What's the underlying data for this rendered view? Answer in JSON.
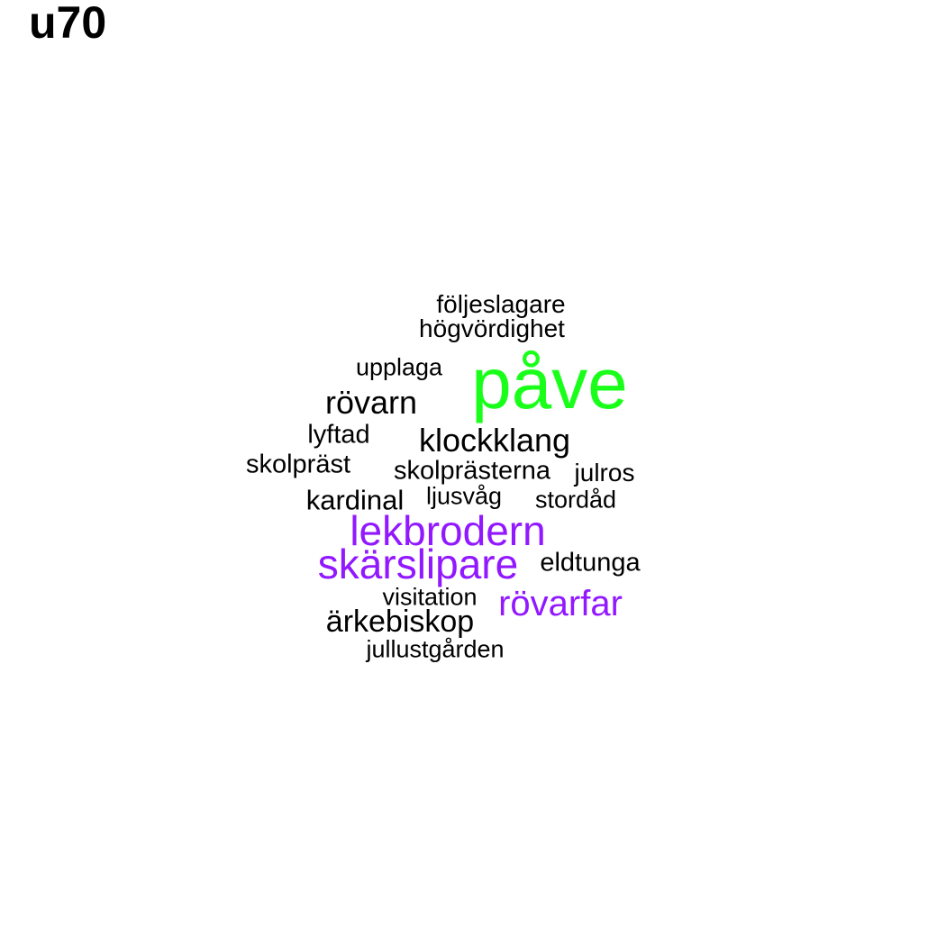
{
  "title": "u70",
  "colors": {
    "default": "#000000",
    "purple": "#9118ff",
    "green": "#1aff1a"
  },
  "words": [
    {
      "text": "påve",
      "color": "green"
    },
    {
      "text": "lekbrodern",
      "color": "purple"
    },
    {
      "text": "skärslipare",
      "color": "purple"
    },
    {
      "text": "rövarfar",
      "color": "purple"
    },
    {
      "text": "följeslagare",
      "color": "default"
    },
    {
      "text": "högvördighet",
      "color": "default"
    },
    {
      "text": "upplaga",
      "color": "default"
    },
    {
      "text": "rövarn",
      "color": "default"
    },
    {
      "text": "lyftad",
      "color": "default"
    },
    {
      "text": "klockklang",
      "color": "default"
    },
    {
      "text": "skolpräst",
      "color": "default"
    },
    {
      "text": "skolprästerna",
      "color": "default"
    },
    {
      "text": "julros",
      "color": "default"
    },
    {
      "text": "kardinal",
      "color": "default"
    },
    {
      "text": "ljusvåg",
      "color": "default"
    },
    {
      "text": "stordåd",
      "color": "default"
    },
    {
      "text": "eldtunga",
      "color": "default"
    },
    {
      "text": "visitation",
      "color": "default"
    },
    {
      "text": "ärkebiskop",
      "color": "default"
    },
    {
      "text": "jullustgården",
      "color": "default"
    }
  ]
}
